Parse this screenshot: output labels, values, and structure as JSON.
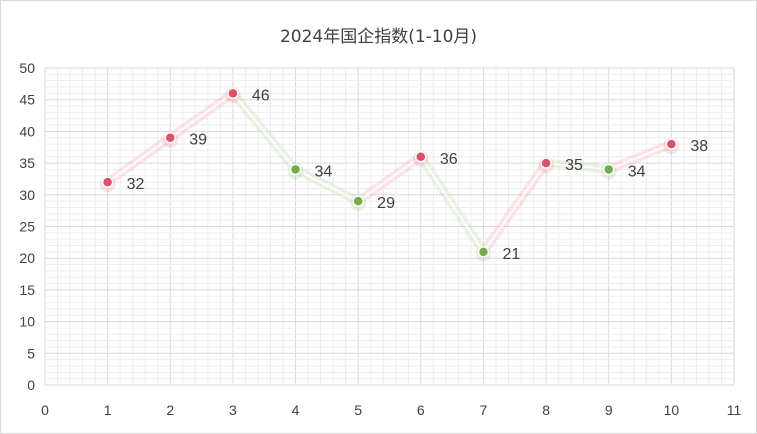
{
  "chart_data": {
    "type": "scatter",
    "title": "2024年国企指数(1-10月)",
    "xlabel": "",
    "ylabel": "",
    "x": [
      1,
      2,
      3,
      4,
      5,
      6,
      7,
      8,
      9,
      10
    ],
    "values": [
      32,
      39,
      46,
      34,
      29,
      36,
      21,
      35,
      34,
      38
    ],
    "xlim": [
      0,
      11
    ],
    "ylim": [
      0,
      50
    ],
    "x_ticks": [
      0,
      1,
      2,
      3,
      4,
      5,
      6,
      7,
      8,
      9,
      10,
      11
    ],
    "y_ticks": [
      0,
      5,
      10,
      15,
      20,
      25,
      30,
      35,
      40,
      45,
      50
    ],
    "grid": true,
    "legend": "none",
    "colors": {
      "up": "#e05064",
      "down": "#70ad47",
      "up_line": "#f5b8c0",
      "down_line": "#c6e0b4",
      "grid_major": "#d9d9d9",
      "grid_minor": "#eeeeee"
    }
  }
}
